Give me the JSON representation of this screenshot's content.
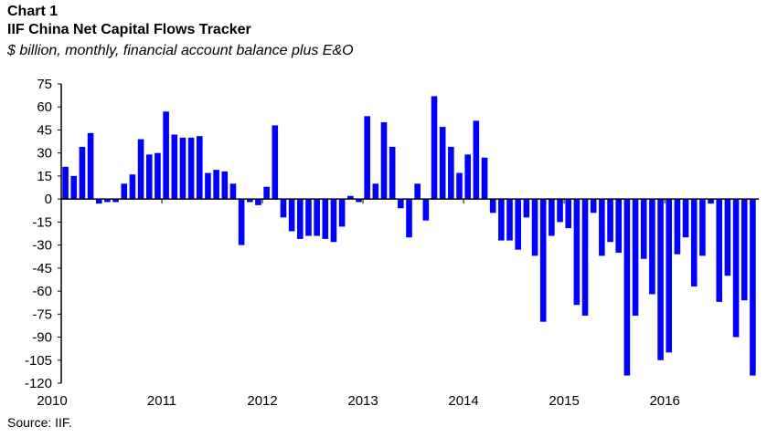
{
  "chart_data": {
    "type": "bar",
    "label": "Chart 1",
    "title": "IIF China Net Capital Flows Tracker",
    "subtitle": "$ billion, monthly, financial account balance plus E&O",
    "source": "Source: IIF.",
    "xlabel": "",
    "ylabel": "",
    "ylim": [
      -120,
      75
    ],
    "yticks": [
      75,
      60,
      45,
      30,
      15,
      0,
      -15,
      -30,
      -45,
      -60,
      -75,
      -90,
      -105,
      -120
    ],
    "xtick_labels": [
      "2010",
      "2011",
      "2012",
      "2013",
      "2014",
      "2015",
      "2016"
    ],
    "series_color": "#0000ff",
    "series": [
      {
        "name": "Net capital flows",
        "values": [
          21,
          15,
          34,
          43,
          -3,
          -2,
          -2,
          10,
          16,
          39,
          29,
          30,
          57,
          42,
          40,
          40,
          41,
          17,
          19,
          18,
          10,
          -30,
          -2,
          -4,
          8,
          48,
          -12,
          -21,
          -26,
          -24,
          -24,
          -26,
          -28,
          -18,
          2,
          -2,
          54,
          10,
          50,
          34,
          -6,
          -25,
          10,
          -14,
          67,
          47,
          34,
          17,
          29,
          51,
          27,
          -9,
          -27,
          -27,
          -33,
          -12,
          -37,
          -80,
          -24,
          -15,
          -19,
          -69,
          -76,
          -9,
          -37,
          -28,
          -35,
          -115,
          -76,
          -39,
          -62,
          -105,
          -100,
          -36,
          -25,
          -57,
          -37,
          -3,
          -67,
          -50,
          -90,
          -66,
          -115
        ]
      }
    ]
  }
}
